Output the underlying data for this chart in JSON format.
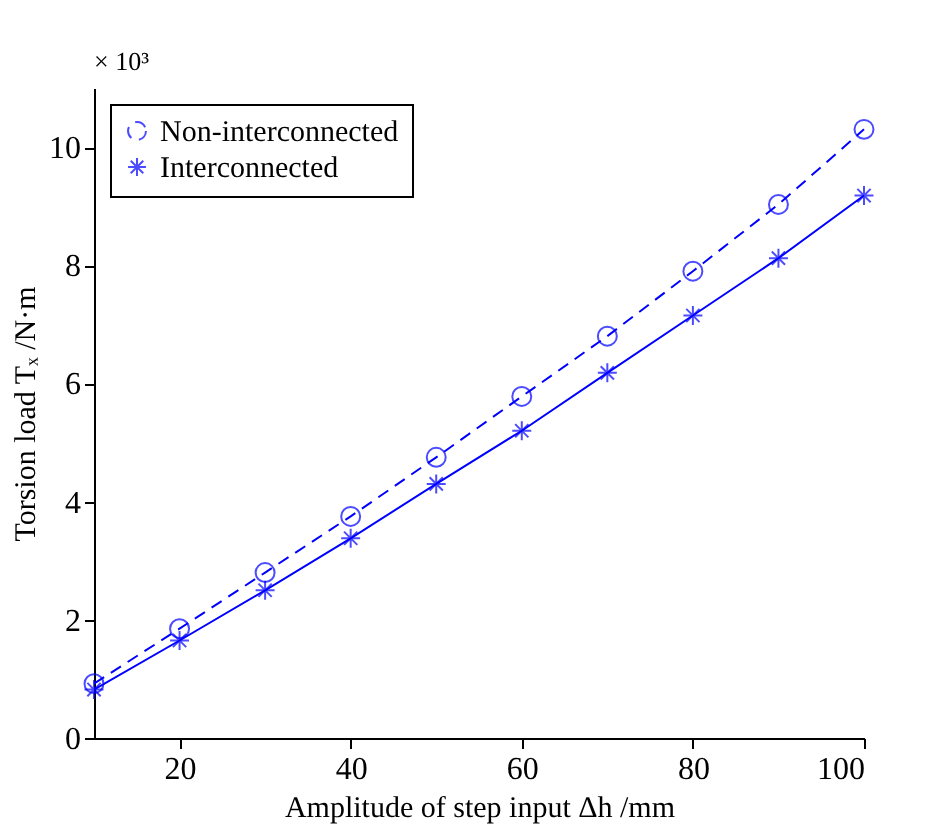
{
  "chart_data": {
    "type": "line",
    "xlabel": "Amplitude of step input Δh /mm",
    "ylabel": "Torsion load Tₓ /N·m",
    "annotations": [
      "× 10³"
    ],
    "x": [
      10,
      20,
      30,
      40,
      50,
      60,
      70,
      80,
      90,
      100
    ],
    "xlim": [
      10,
      100
    ],
    "xticks": [
      20,
      40,
      60,
      80,
      100
    ],
    "ylim": [
      0,
      11
    ],
    "yticks": [
      0,
      2,
      4,
      6,
      8,
      10
    ],
    "grid": false,
    "legend": "top left",
    "series": [
      {
        "name": "Non-interconnected",
        "color": "#0000ff",
        "line_style": "dashed",
        "marker": "circle",
        "values": [
          0.92,
          1.85,
          2.8,
          3.75,
          4.75,
          5.78,
          6.8,
          7.9,
          9.03,
          10.3
        ]
      },
      {
        "name": "Interconnected",
        "color": "#0000ff",
        "line_style": "solid",
        "marker": "cross",
        "values": [
          0.82,
          1.65,
          2.5,
          3.38,
          4.3,
          5.2,
          6.18,
          7.15,
          8.12,
          9.18
        ]
      }
    ]
  }
}
